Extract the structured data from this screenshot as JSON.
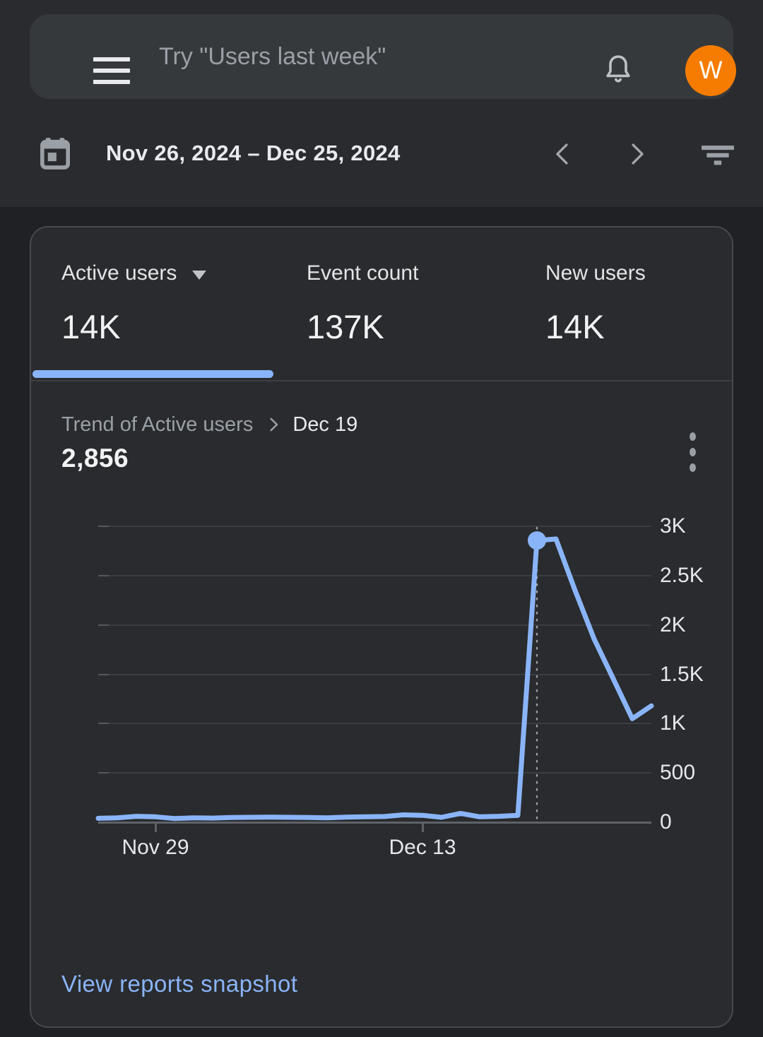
{
  "header": {
    "search_placeholder": "Try \"Users last week\"",
    "avatar_initial": "W",
    "icons": [
      "menu-icon",
      "notifications-icon"
    ]
  },
  "date_bar": {
    "range": "Nov 26, 2024 – Dec 25, 2024",
    "icons": [
      "calendar-icon",
      "previous-period-icon",
      "next-period-icon",
      "filter-icon"
    ]
  },
  "metrics": {
    "tabs": [
      {
        "label": "Active users",
        "value": "14K",
        "selected": true,
        "has_dropdown": true
      },
      {
        "label": "Event count",
        "value": "137K",
        "selected": false,
        "has_dropdown": false
      },
      {
        "label": "New users",
        "value": "14K",
        "selected": false,
        "has_dropdown": false
      }
    ]
  },
  "trend": {
    "title": "Trend of Active users",
    "selected_date": "Dec 19",
    "selected_value": "2,856",
    "menu_icon": "kebab-menu-icon"
  },
  "footer": {
    "link_label": "View reports snapshot"
  },
  "colors": {
    "accent_blue": "#8ab4f8",
    "link_blue": "#8ab4f8",
    "avatar_orange": "#f57c00",
    "chart_line": "#8ab4f8",
    "gridline": "#3a3d41",
    "axis": "#5f6368"
  },
  "chart_data": {
    "type": "line",
    "title": "Trend of Active users",
    "x": [
      "Nov 26",
      "Nov 27",
      "Nov 28",
      "Nov 29",
      "Nov 30",
      "Dec 1",
      "Dec 2",
      "Dec 3",
      "Dec 4",
      "Dec 5",
      "Dec 6",
      "Dec 7",
      "Dec 8",
      "Dec 9",
      "Dec 10",
      "Dec 11",
      "Dec 12",
      "Dec 13",
      "Dec 14",
      "Dec 15",
      "Dec 16",
      "Dec 17",
      "Dec 18",
      "Dec 19",
      "Dec 20",
      "Dec 21",
      "Dec 22",
      "Dec 23",
      "Dec 24",
      "Dec 25"
    ],
    "values": [
      40,
      45,
      60,
      55,
      38,
      45,
      42,
      48,
      50,
      52,
      50,
      48,
      45,
      52,
      55,
      58,
      75,
      70,
      50,
      90,
      55,
      60,
      70,
      2856,
      2871,
      2350,
      1857,
      1455,
      1050,
      1180
    ],
    "ylim": [
      0,
      3000
    ],
    "yticks": [
      {
        "label": "0",
        "value": 0
      },
      {
        "label": "500",
        "value": 500
      },
      {
        "label": "1K",
        "value": 1000
      },
      {
        "label": "1.5K",
        "value": 1500
      },
      {
        "label": "2K",
        "value": 2000
      },
      {
        "label": "2.5K",
        "value": 2500
      },
      {
        "label": "3K",
        "value": 3000
      }
    ],
    "xticks": [
      {
        "label": "Nov 29",
        "index": 3
      },
      {
        "label": "Dec 13",
        "index": 17
      }
    ],
    "selected": {
      "index": 23,
      "date": "Dec 19",
      "value": 2856
    },
    "grid": true,
    "legend": false
  }
}
